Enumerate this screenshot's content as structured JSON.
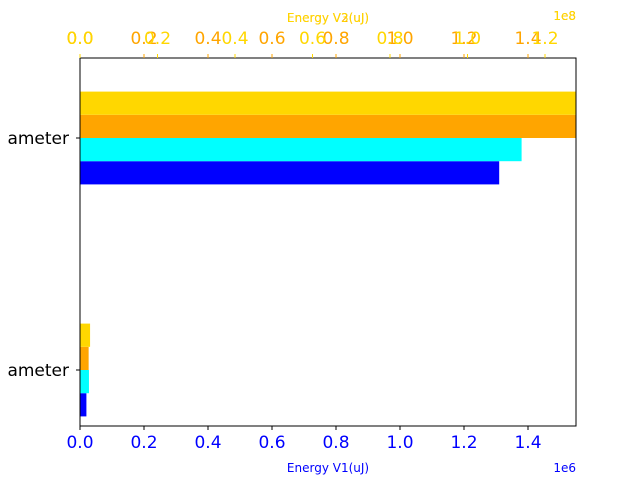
{
  "chart_data": {
    "type": "bar",
    "orientation": "horizontal",
    "categories": [
      "ameter",
      "ameter"
    ],
    "series": [
      {
        "axis": "V1",
        "color": "#0000ff",
        "values": [
          20000,
          1310000
        ]
      },
      {
        "axis": "V1",
        "color": "#00ffff",
        "values": [
          28000,
          1380000
        ]
      },
      {
        "axis": "V2",
        "color": "#ffa500",
        "values": [
          2700000,
          155000000
        ]
      },
      {
        "axis": "V3",
        "color": "#ffd700",
        "values": [
          2600000,
          128000000
        ]
      }
    ],
    "axes": {
      "V1": {
        "xlabel": "Energy V1(uJ)",
        "multiplier": "1e6",
        "color": "#0000ff",
        "xlim": [
          0,
          1550000
        ],
        "ticks": [
          0,
          200000,
          400000,
          600000,
          800000,
          1000000,
          1200000,
          1400000
        ],
        "tick_labels": [
          "0.0",
          "0.2",
          "0.4",
          "0.6",
          "0.8",
          "1.0",
          "1.2",
          "1.4"
        ]
      },
      "V2": {
        "xlabel": "Energy V2(uJ)",
        "multiplier": "1e8",
        "color": "#ffa500",
        "xlim": [
          0,
          155000000
        ],
        "ticks": [
          0,
          20000000,
          40000000,
          60000000,
          80000000,
          100000000,
          120000000,
          140000000
        ],
        "tick_labels": [
          "0.0",
          "0.2",
          "0.4",
          "0.6",
          "0.8",
          "1.0",
          "1.2",
          "1.4"
        ]
      },
      "V3": {
        "xlabel": "Energy V3(uJ)",
        "multiplier": "1e8",
        "color": "#ffd700",
        "xlim": [
          0,
          128000000
        ],
        "ticks": [
          0,
          20000000,
          40000000,
          60000000,
          80000000,
          100000000,
          120000000
        ],
        "tick_labels": [
          "0.0",
          "0.2",
          "0.4",
          "0.6",
          "0.8",
          "1.0",
          "1.2"
        ]
      }
    },
    "grid": false,
    "legend": "none"
  }
}
